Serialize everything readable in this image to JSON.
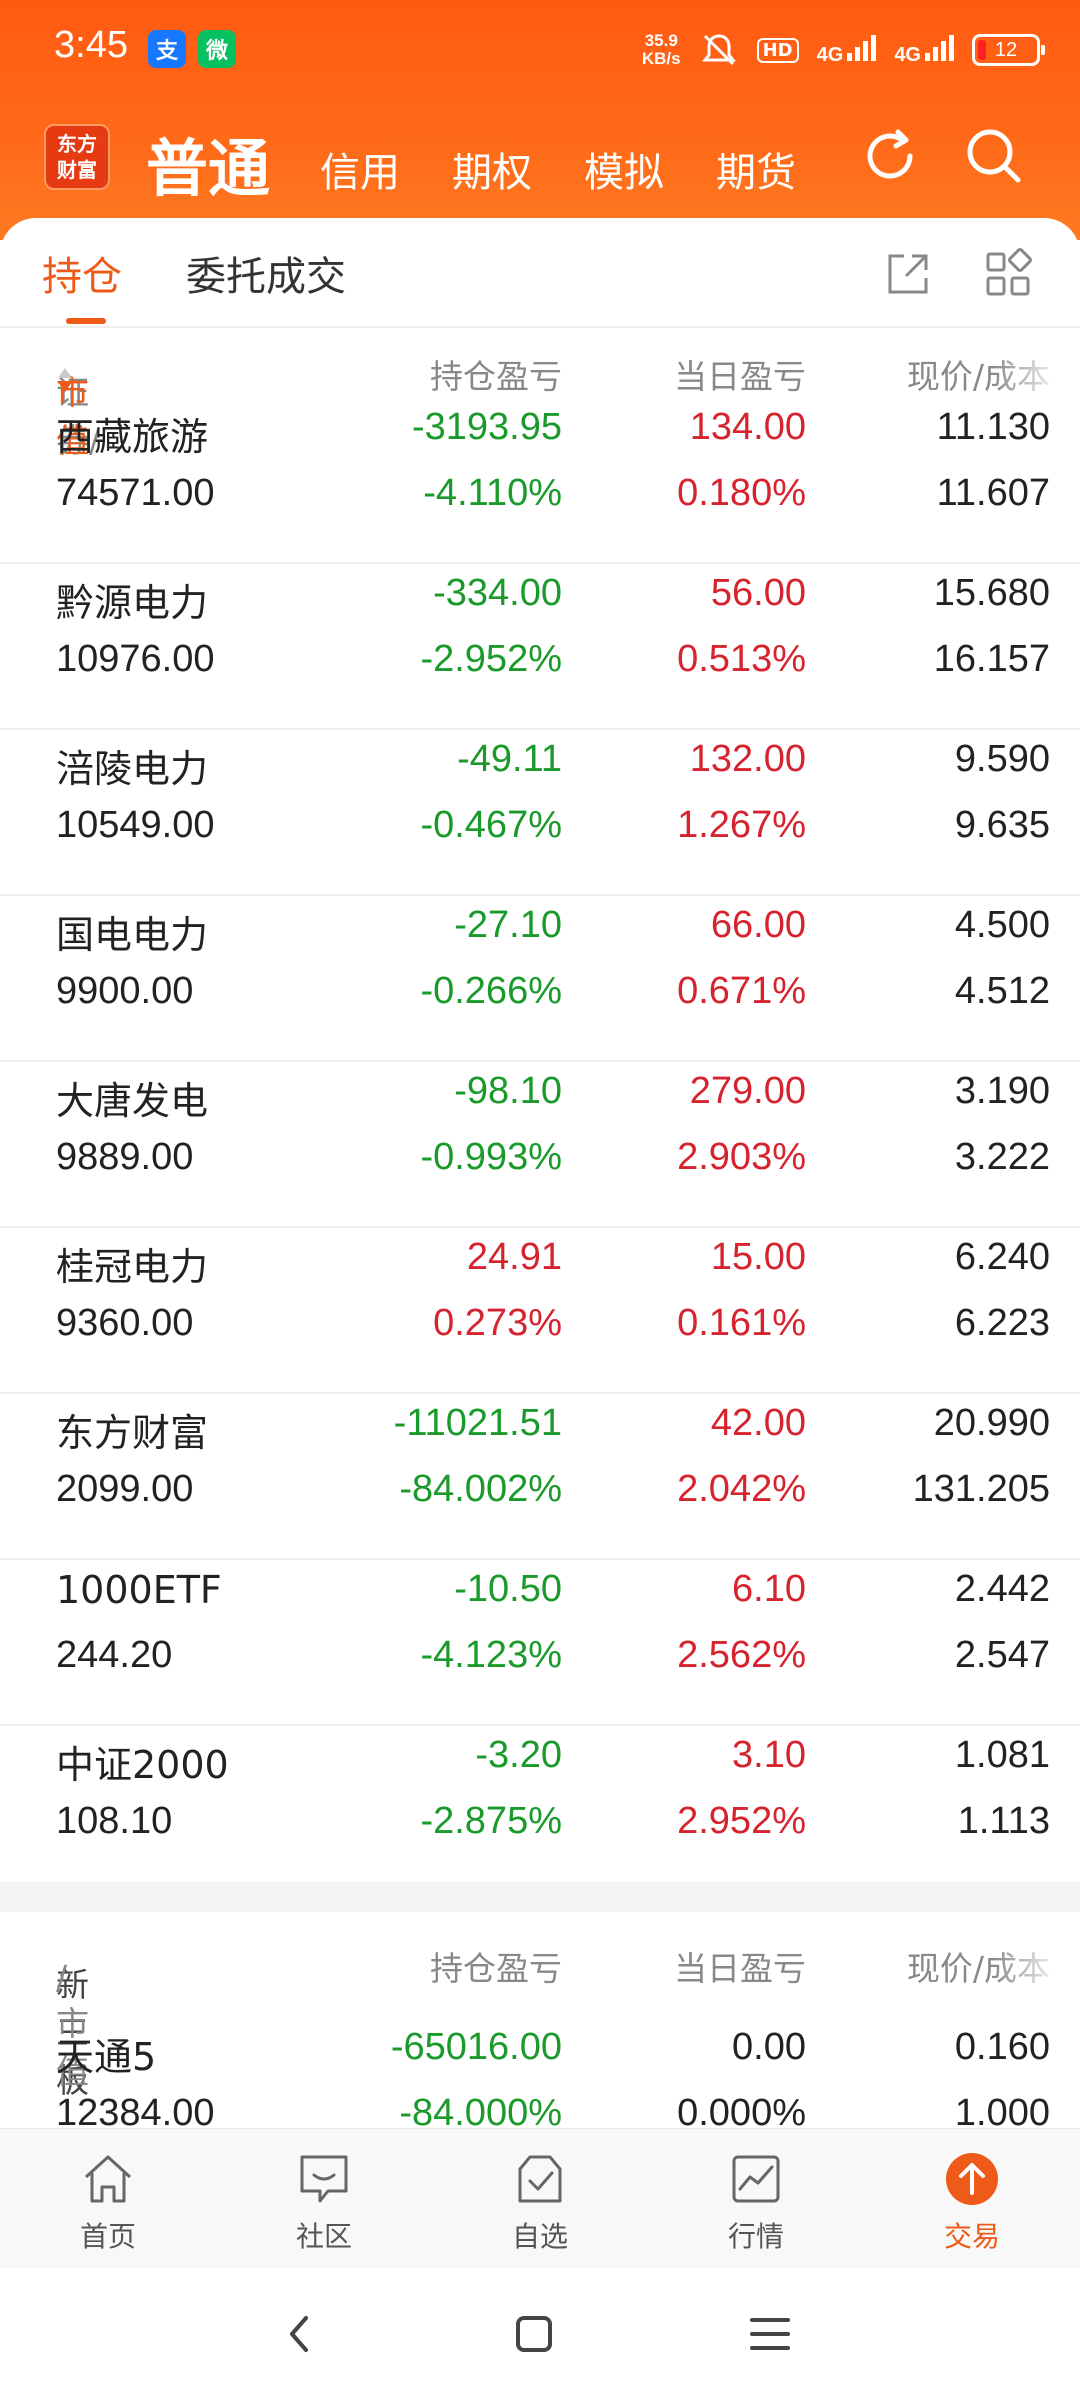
{
  "status": {
    "time": "3:45",
    "app_alipay": "支",
    "app_wechat": "微",
    "net_speed_value": "35.9",
    "net_speed_unit": "KB/s",
    "hd": "HD",
    "signal1": "4G",
    "signal2": "4G",
    "battery": "12"
  },
  "nav": {
    "logo_line1": "东方",
    "logo_line2": "财富",
    "main": "普通",
    "tabs": [
      "信用",
      "期权",
      "模拟",
      "期货"
    ]
  },
  "subtabs": {
    "positions": "持仓",
    "orders": "委托成交"
  },
  "table_header": {
    "col1a": "证券/",
    "col1b": "市值",
    "col2": "持仓盈亏",
    "col3": "当日盈亏",
    "col4": "现价/成本"
  },
  "rows": [
    {
      "name": "西藏旅游",
      "value": "74571.00",
      "pl": "-3193.95",
      "pl_pct": "-4.110%",
      "day": "134.00",
      "day_pct": "0.180%",
      "price": "11.130",
      "cost": "11.607",
      "pl_color": "green",
      "day_color": "red"
    },
    {
      "name": "黔源电力",
      "value": "10976.00",
      "pl": "-334.00",
      "pl_pct": "-2.952%",
      "day": "56.00",
      "day_pct": "0.513%",
      "price": "15.680",
      "cost": "16.157",
      "pl_color": "green",
      "day_color": "red"
    },
    {
      "name": "涪陵电力",
      "value": "10549.00",
      "pl": "-49.11",
      "pl_pct": "-0.467%",
      "day": "132.00",
      "day_pct": "1.267%",
      "price": "9.590",
      "cost": "9.635",
      "pl_color": "green",
      "day_color": "red"
    },
    {
      "name": "国电电力",
      "value": "9900.00",
      "pl": "-27.10",
      "pl_pct": "-0.266%",
      "day": "66.00",
      "day_pct": "0.671%",
      "price": "4.500",
      "cost": "4.512",
      "pl_color": "green",
      "day_color": "red"
    },
    {
      "name": "大唐发电",
      "value": "9889.00",
      "pl": "-98.10",
      "pl_pct": "-0.993%",
      "day": "279.00",
      "day_pct": "2.903%",
      "price": "3.190",
      "cost": "3.222",
      "pl_color": "green",
      "day_color": "red"
    },
    {
      "name": "桂冠电力",
      "value": "9360.00",
      "pl": "24.91",
      "pl_pct": "0.273%",
      "day": "15.00",
      "day_pct": "0.161%",
      "price": "6.240",
      "cost": "6.223",
      "pl_color": "red",
      "day_color": "red"
    },
    {
      "name": "东方财富",
      "value": "2099.00",
      "pl": "-11021.51",
      "pl_pct": "-84.002%",
      "day": "42.00",
      "day_pct": "2.042%",
      "price": "20.990",
      "cost": "131.205",
      "pl_color": "green",
      "day_color": "red"
    },
    {
      "name": "1000ETF",
      "value": "244.20",
      "pl": "-10.50",
      "pl_pct": "-4.123%",
      "day": "6.10",
      "day_pct": "2.562%",
      "price": "2.442",
      "cost": "2.547",
      "pl_color": "green",
      "day_color": "red"
    },
    {
      "name": "中证2000",
      "value": "108.10",
      "pl": "-3.20",
      "pl_pct": "-2.875%",
      "day": "3.10",
      "day_pct": "2.952%",
      "price": "1.081",
      "cost": "1.113",
      "pl_color": "green",
      "day_color": "red"
    }
  ],
  "neeq_header": {
    "col1a": "新三板",
    "col1b": "/市值",
    "col2": "持仓盈亏",
    "col3": "当日盈亏",
    "col4": "现价/成本"
  },
  "neeq_rows": [
    {
      "name": "天通5",
      "value": "12384.00",
      "pl": "-65016.00",
      "pl_pct": "-84.000%",
      "day": "0.00",
      "day_pct": "0.000%",
      "price": "0.160",
      "cost": "1.000",
      "pl_color": "green",
      "day_color": "black"
    }
  ],
  "tabbar": [
    {
      "label": "首页",
      "icon": "home-icon"
    },
    {
      "label": "社区",
      "icon": "community-icon"
    },
    {
      "label": "自选",
      "icon": "watchlist-icon"
    },
    {
      "label": "行情",
      "icon": "market-icon"
    },
    {
      "label": "交易",
      "icon": "trade-icon",
      "active": true
    }
  ],
  "colors": {
    "accent": "#ee5a18",
    "header": "#ff5a12",
    "gain": "#d6232e",
    "loss": "#1a9a2a"
  }
}
